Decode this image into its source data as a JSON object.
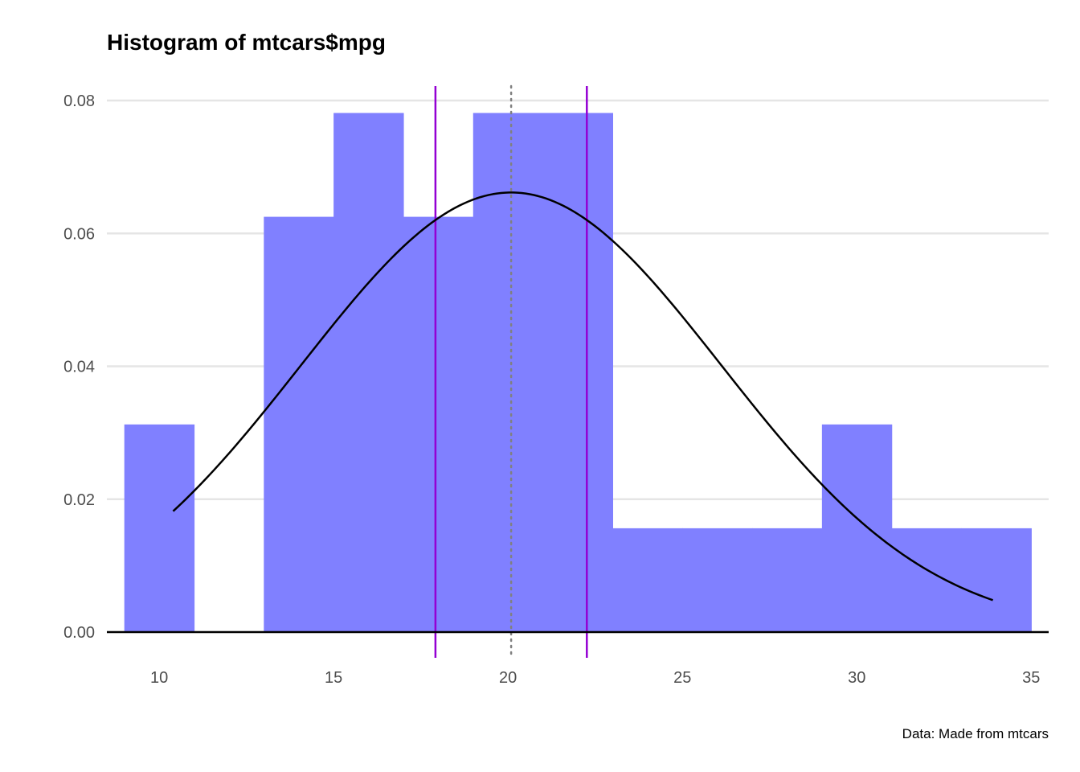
{
  "chart_data": {
    "type": "bar",
    "title": "Histogram of mtcars$mpg",
    "caption": "Data: Made from mtcars",
    "xlabel": "",
    "ylabel": "",
    "xlim": [
      8.5,
      35.5
    ],
    "ylim": [
      0,
      0.08
    ],
    "grid": true,
    "x_ticks": [
      {
        "value": 10,
        "label": "10"
      },
      {
        "value": 15,
        "label": "15"
      },
      {
        "value": 20,
        "label": "20"
      },
      {
        "value": 25,
        "label": "25"
      },
      {
        "value": 30,
        "label": "30"
      },
      {
        "value": 35,
        "label": "35"
      }
    ],
    "y_ticks": [
      {
        "value": 0,
        "label": "0.00"
      },
      {
        "value": 0.02,
        "label": "0.02"
      },
      {
        "value": 0.04,
        "label": "0.04"
      },
      {
        "value": 0.06,
        "label": "0.06"
      },
      {
        "value": 0.08,
        "label": "0.08"
      }
    ],
    "bins": [
      {
        "x0": 9,
        "x1": 11,
        "density": 0.03125
      },
      {
        "x0": 11,
        "x1": 13,
        "density": 0
      },
      {
        "x0": 13,
        "x1": 15,
        "density": 0.0625
      },
      {
        "x0": 15,
        "x1": 17,
        "density": 0.078125
      },
      {
        "x0": 17,
        "x1": 19,
        "density": 0.0625
      },
      {
        "x0": 19,
        "x1": 21,
        "density": 0.078125
      },
      {
        "x0": 21,
        "x1": 23,
        "density": 0.078125
      },
      {
        "x0": 23,
        "x1": 25,
        "density": 0.015625
      },
      {
        "x0": 25,
        "x1": 27,
        "density": 0.015625
      },
      {
        "x0": 27,
        "x1": 29,
        "density": 0.015625
      },
      {
        "x0": 29,
        "x1": 31,
        "density": 0.03125
      },
      {
        "x0": 31,
        "x1": 33,
        "density": 0.015625
      },
      {
        "x0": 33,
        "x1": 35,
        "density": 0.015625
      }
    ],
    "normal_curve": {
      "mean": 20.09,
      "sd": 6.03,
      "x_from": 10.4,
      "x_to": 33.9
    },
    "mean_line": {
      "x": 20.09
    },
    "ci_lines": [
      {
        "x": 17.92
      },
      {
        "x": 22.26
      }
    ],
    "colors": {
      "bars": "#8080ff",
      "curve": "#000000",
      "ci_lines": "#9400d3",
      "mean_line": "#808080",
      "baseline": "#000000",
      "grid": "#e5e5e5"
    }
  }
}
